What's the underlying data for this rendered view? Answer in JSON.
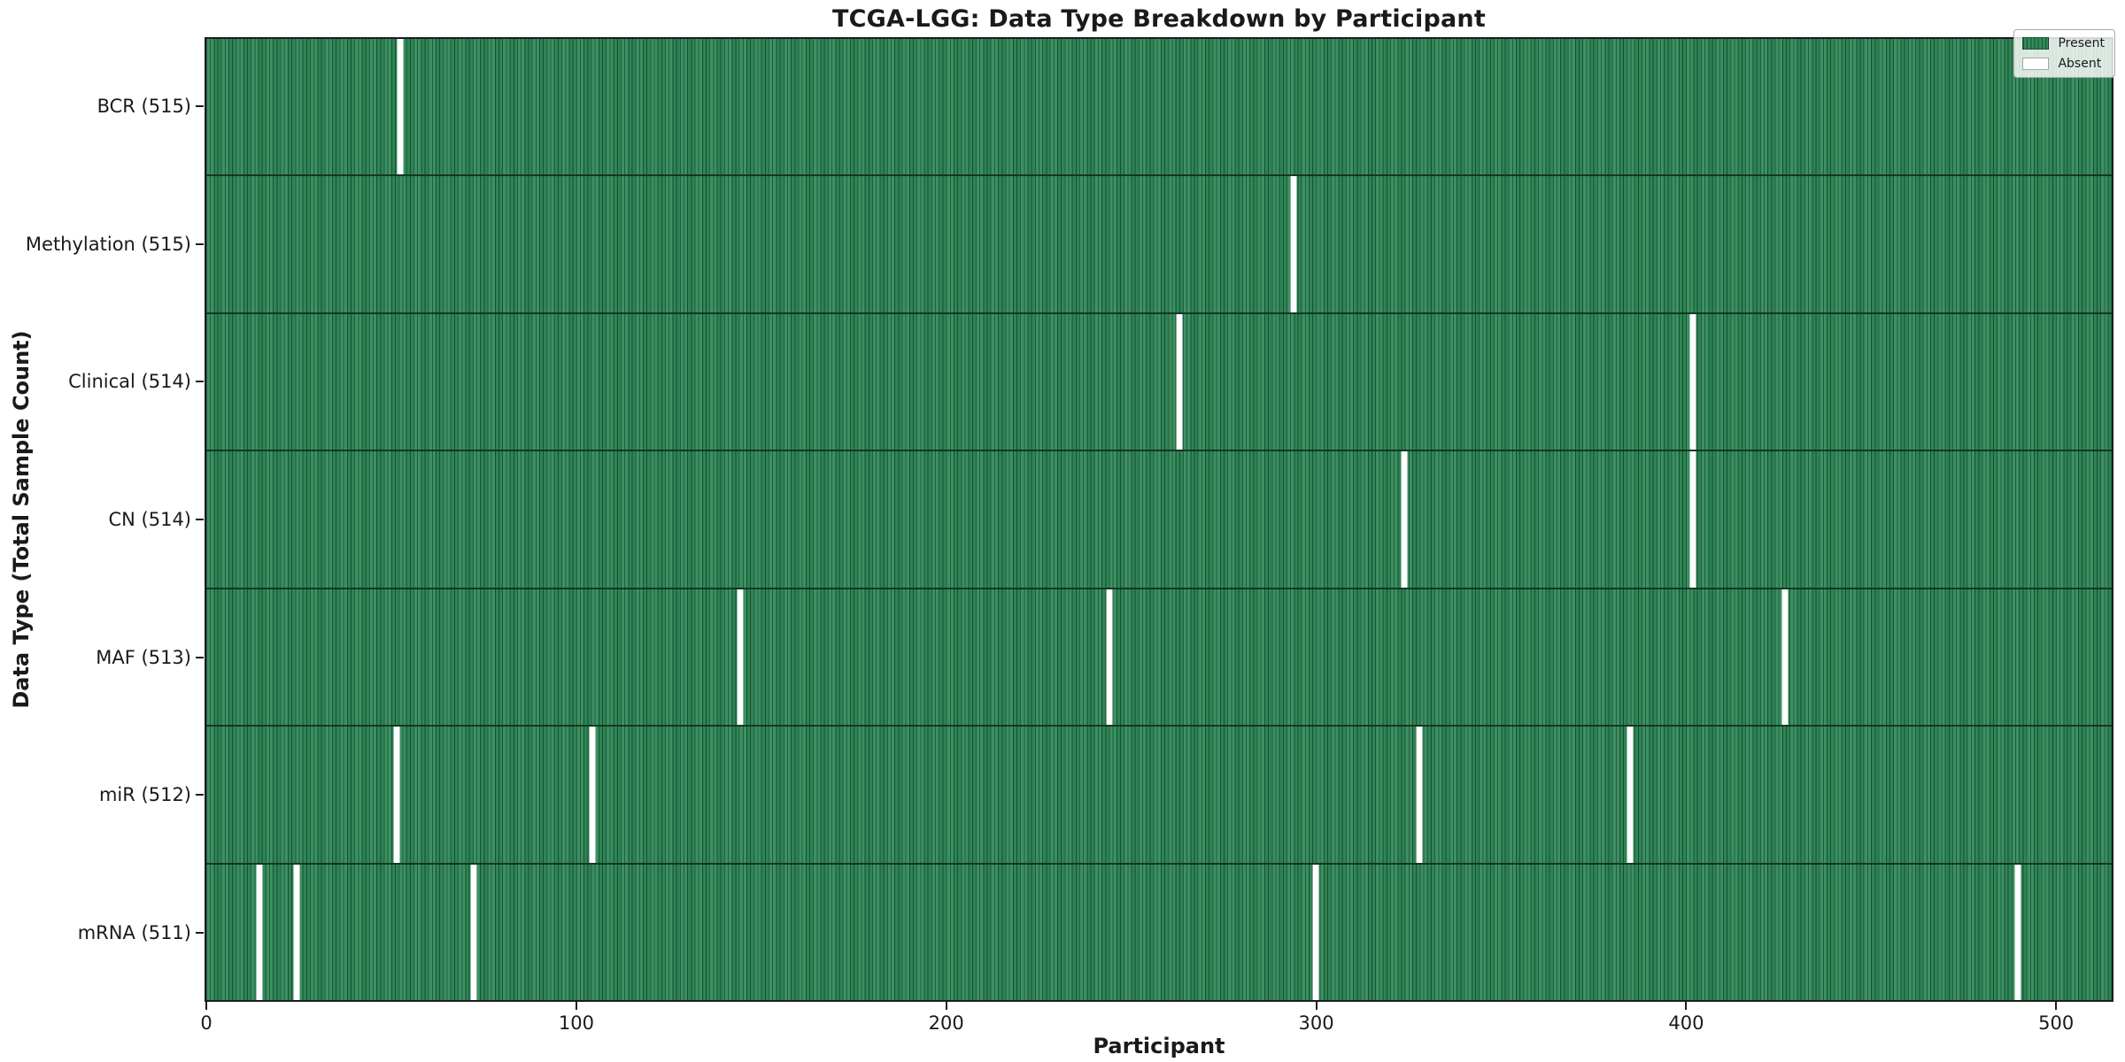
{
  "chart_data": {
    "type": "heatmap",
    "title": "TCGA-LGG: Data Type Breakdown by Participant",
    "xlabel": "Participant",
    "ylabel": "Data Type (Total Sample Count)",
    "x_ticks": [
      0,
      100,
      200,
      300,
      400,
      500
    ],
    "n_participants": 516,
    "grid": false,
    "legend_position": "upper right",
    "legend": [
      {
        "label": "Present",
        "color": "#2e8b57"
      },
      {
        "label": "Absent",
        "color": "#ffffff"
      }
    ],
    "rows": [
      {
        "key": "bcr",
        "label": "BCR (515)",
        "total_samples": 515,
        "absent_participants": [
          52
        ]
      },
      {
        "key": "methylation",
        "label": "Methylation (515)",
        "total_samples": 515,
        "absent_participants": [
          294
        ]
      },
      {
        "key": "clinical",
        "label": "Clinical (514)",
        "total_samples": 514,
        "absent_participants": [
          263,
          402
        ]
      },
      {
        "key": "cn",
        "label": "CN (514)",
        "total_samples": 514,
        "absent_participants": [
          324,
          402
        ]
      },
      {
        "key": "maf",
        "label": "MAF (513)",
        "total_samples": 513,
        "absent_participants": [
          144,
          244,
          427
        ]
      },
      {
        "key": "mir",
        "label": "miR (512)",
        "total_samples": 512,
        "absent_participants": [
          51,
          104,
          328,
          385
        ]
      },
      {
        "key": "mrna",
        "label": "mRNA (511)",
        "total_samples": 511,
        "absent_participants": [
          14,
          24,
          72,
          300,
          490
        ]
      }
    ],
    "colors": {
      "present": "#2f8c59",
      "cell_edge": "#1d5037",
      "absent": "#ffffff",
      "row_divider": "rgba(16,42,28,0.85)",
      "spine": "#1c1c1c"
    }
  }
}
